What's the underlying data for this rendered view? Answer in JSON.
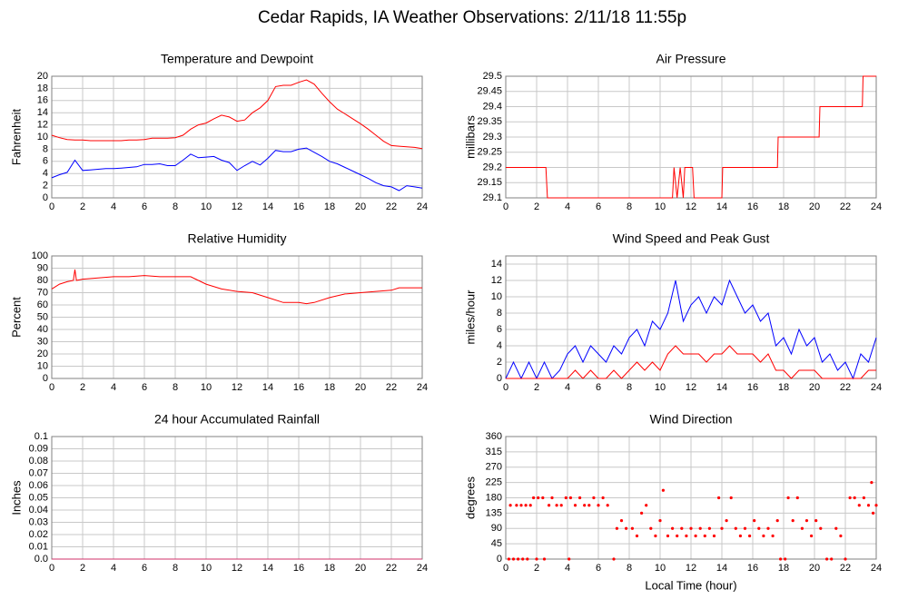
{
  "title": "Cedar Rapids, IA Weather Observations: 2/11/18 11:55p",
  "chart_data": [
    {
      "type": "line",
      "title": "Temperature and Dewpoint",
      "ylabel": "Fahrenheit",
      "xlim": [
        0,
        24
      ],
      "xticks": [
        0,
        2,
        4,
        6,
        8,
        10,
        12,
        14,
        16,
        18,
        20,
        22,
        24
      ],
      "ylim": [
        0,
        20
      ],
      "yticks": [
        0,
        2,
        4,
        6,
        8,
        10,
        12,
        14,
        16,
        18,
        20
      ],
      "grid": true,
      "x": [
        0,
        0.5,
        1,
        1.5,
        2,
        2.5,
        3,
        3.5,
        4,
        4.5,
        5,
        5.5,
        6,
        6.5,
        7,
        7.5,
        8,
        8.5,
        9,
        9.5,
        10,
        10.5,
        11,
        11.5,
        12,
        12.5,
        13,
        13.5,
        14,
        14.5,
        15,
        15.5,
        16,
        16.5,
        17,
        17.5,
        18,
        18.5,
        19,
        19.5,
        20,
        20.5,
        21,
        21.5,
        22,
        22.5,
        23,
        23.5,
        24
      ],
      "series": [
        {
          "color": "#ff0000",
          "values": [
            10.3,
            9.9,
            9.6,
            9.5,
            9.5,
            9.4,
            9.4,
            9.4,
            9.4,
            9.4,
            9.5,
            9.5,
            9.6,
            9.8,
            9.8,
            9.8,
            9.9,
            10.3,
            11.3,
            12,
            12.3,
            13,
            13.6,
            13.3,
            12.6,
            12.8,
            14,
            14.8,
            16,
            18.3,
            18.5,
            18.5,
            19,
            19.4,
            18.7,
            17.2,
            15.8,
            14.6,
            13.8,
            13,
            12.2,
            11.3,
            10.3,
            9.3,
            8.6,
            8.5,
            8.4,
            8.3,
            8.1
          ]
        },
        {
          "color": "#0000ff",
          "values": [
            3.3,
            3.8,
            4.2,
            6.2,
            4.5,
            4.6,
            4.7,
            4.8,
            4.8,
            4.9,
            5,
            5.1,
            5.5,
            5.5,
            5.6,
            5.3,
            5.3,
            6.2,
            7.2,
            6.6,
            6.7,
            6.8,
            6.2,
            5.8,
            4.5,
            5.3,
            6,
            5.4,
            6.5,
            7.8,
            7.6,
            7.6,
            8,
            8.2,
            7.5,
            6.8,
            6,
            5.6,
            5,
            4.4,
            3.8,
            3.2,
            2.5,
            2,
            1.8,
            1.2,
            2,
            1.8,
            1.6
          ]
        }
      ]
    },
    {
      "type": "line",
      "title": "Air Pressure",
      "ylabel": "millibars",
      "xlim": [
        0,
        24
      ],
      "xticks": [
        0,
        2,
        4,
        6,
        8,
        10,
        12,
        14,
        16,
        18,
        20,
        22,
        24
      ],
      "ylim": [
        29.1,
        29.5
      ],
      "yticks": [
        29.1,
        29.15,
        29.2,
        29.25,
        29.3,
        29.35,
        29.4,
        29.45,
        29.5
      ],
      "grid": true,
      "x": [
        0,
        2.6,
        2.7,
        10.8,
        10.9,
        11.1,
        11.3,
        11.5,
        11.6,
        12.1,
        12.2,
        14,
        14.05,
        17.6,
        17.65,
        20.3,
        20.35,
        23.1,
        23.15,
        24
      ],
      "series": [
        {
          "color": "#ff0000",
          "values": [
            29.2,
            29.2,
            29.1,
            29.1,
            29.2,
            29.1,
            29.2,
            29.1,
            29.2,
            29.2,
            29.1,
            29.1,
            29.2,
            29.2,
            29.3,
            29.3,
            29.4,
            29.4,
            29.5,
            29.5
          ]
        }
      ]
    },
    {
      "type": "line",
      "title": "Relative Humidity",
      "ylabel": "Percent",
      "xlim": [
        0,
        24
      ],
      "xticks": [
        0,
        2,
        4,
        6,
        8,
        10,
        12,
        14,
        16,
        18,
        20,
        22,
        24
      ],
      "ylim": [
        0,
        100
      ],
      "yticks": [
        0,
        10,
        20,
        30,
        40,
        50,
        60,
        70,
        80,
        90,
        100
      ],
      "grid": true,
      "x": [
        0,
        0.5,
        1,
        1.4,
        1.5,
        1.6,
        2,
        3,
        4,
        5,
        6,
        7,
        8,
        9,
        9.5,
        10,
        11,
        12,
        13,
        14,
        15,
        16,
        16.5,
        17,
        18,
        19,
        20,
        21,
        22,
        22.5,
        23,
        24
      ],
      "series": [
        {
          "color": "#ff0000",
          "values": [
            73,
            77,
            79,
            80,
            89,
            80,
            81,
            82,
            83,
            83,
            84,
            83,
            83,
            83,
            80,
            77,
            73,
            71,
            70,
            66,
            62,
            62,
            61,
            62,
            66,
            69,
            70,
            71,
            72,
            74,
            74,
            74
          ]
        }
      ]
    },
    {
      "type": "line",
      "title": "Wind Speed and Peak Gust",
      "ylabel": "miles/hour",
      "xlim": [
        0,
        24
      ],
      "xticks": [
        0,
        2,
        4,
        6,
        8,
        10,
        12,
        14,
        16,
        18,
        20,
        22,
        24
      ],
      "ylim": [
        0,
        15
      ],
      "yticks": [
        0,
        2,
        4,
        6,
        8,
        10,
        12,
        14
      ],
      "grid": true,
      "x": [
        0,
        0.5,
        1,
        1.5,
        2,
        2.5,
        3,
        3.5,
        4,
        4.5,
        5,
        5.5,
        6,
        6.5,
        7,
        7.5,
        8,
        8.5,
        9,
        9.5,
        10,
        10.5,
        11,
        11.5,
        12,
        12.5,
        13,
        13.5,
        14,
        14.5,
        15,
        15.5,
        16,
        16.5,
        17,
        17.5,
        18,
        18.5,
        19,
        19.5,
        20,
        20.5,
        21,
        21.5,
        22,
        22.5,
        23,
        23.5,
        24
      ],
      "series": [
        {
          "color": "#0000ff",
          "values": [
            0,
            2,
            0,
            2,
            0,
            2,
            0,
            1,
            3,
            4,
            2,
            4,
            3,
            2,
            4,
            3,
            5,
            6,
            4,
            7,
            6,
            8,
            12,
            7,
            9,
            10,
            8,
            10,
            9,
            12,
            10,
            8,
            9,
            7,
            8,
            4,
            5,
            3,
            6,
            4,
            5,
            2,
            3,
            1,
            2,
            0,
            3,
            2,
            5
          ]
        },
        {
          "color": "#ff0000",
          "values": [
            0,
            0,
            0,
            0,
            0,
            0,
            0,
            0,
            0,
            1,
            0,
            1,
            0,
            0,
            1,
            0,
            1,
            2,
            1,
            2,
            1,
            3,
            4,
            3,
            3,
            3,
            2,
            3,
            3,
            4,
            3,
            3,
            3,
            2,
            3,
            1,
            1,
            0,
            1,
            1,
            1,
            0,
            0,
            0,
            0,
            0,
            0,
            1,
            1
          ]
        }
      ]
    },
    {
      "type": "line",
      "title": "24 hour Accumulated Rainfall",
      "ylabel": "Inches",
      "xlim": [
        0,
        24
      ],
      "xticks": [
        0,
        2,
        4,
        6,
        8,
        10,
        12,
        14,
        16,
        18,
        20,
        22,
        24
      ],
      "ylim": [
        0,
        0.1
      ],
      "yticks": [
        {
          "value": 0,
          "label": "0.0"
        },
        0.01,
        0.02,
        0.03,
        0.04,
        0.05,
        0.06,
        0.07,
        0.08,
        0.09,
        0.1
      ],
      "grid": true,
      "x": [
        0,
        24
      ],
      "series": [
        {
          "color": "#d0306a",
          "values": [
            0,
            0
          ]
        }
      ]
    },
    {
      "type": "scatter",
      "title": "Wind Direction",
      "ylabel": "degrees",
      "xlabel": "Local Time (hour)",
      "xlim": [
        0,
        24
      ],
      "xticks": [
        0,
        2,
        4,
        6,
        8,
        10,
        12,
        14,
        16,
        18,
        20,
        22,
        24
      ],
      "ylim": [
        0,
        360
      ],
      "yticks": [
        0,
        45,
        90,
        135,
        180,
        225,
        270,
        315,
        360
      ],
      "grid": true,
      "x": [
        0.2,
        0.5,
        0.8,
        1.1,
        1.4,
        0.3,
        0.7,
        1.0,
        1.3,
        1.6,
        1.8,
        2.1,
        2.4,
        2.0,
        2.5,
        2.8,
        3.0,
        3.3,
        3.6,
        3.9,
        4.1,
        4.2,
        4.5,
        4.8,
        5.1,
        5.4,
        5.7,
        6.0,
        6.3,
        6.6,
        7.0,
        7.2,
        7.5,
        7.8,
        8.2,
        8.5,
        8.8,
        9.1,
        9.4,
        9.7,
        10.0,
        10.2,
        10.5,
        10.8,
        11.1,
        11.4,
        11.7,
        12.0,
        12.3,
        12.6,
        12.9,
        13.2,
        13.5,
        13.8,
        14.0,
        14.3,
        14.6,
        14.9,
        15.2,
        15.5,
        15.8,
        16.1,
        16.4,
        16.7,
        17.0,
        17.3,
        17.6,
        17.8,
        18.1,
        18.3,
        18.6,
        18.9,
        19.2,
        19.5,
        19.8,
        20.1,
        20.4,
        20.8,
        21.1,
        21.4,
        21.7,
        22.0,
        22.3,
        22.6,
        22.9,
        23.2,
        23.5,
        23.7,
        23.8,
        24.0
      ],
      "series": [
        {
          "color": "#ff0000",
          "values": [
            0,
            0,
            0,
            0,
            0,
            158,
            158,
            158,
            158,
            158,
            180,
            180,
            180,
            0,
            0,
            158,
            180,
            158,
            158,
            180,
            0,
            180,
            158,
            180,
            158,
            158,
            180,
            158,
            180,
            158,
            0,
            90,
            113,
            90,
            90,
            68,
            135,
            158,
            90,
            68,
            113,
            202,
            68,
            90,
            68,
            90,
            68,
            90,
            68,
            90,
            68,
            90,
            68,
            180,
            90,
            113,
            180,
            90,
            68,
            90,
            68,
            113,
            90,
            68,
            90,
            68,
            113,
            0,
            0,
            180,
            113,
            180,
            90,
            113,
            68,
            113,
            90,
            0,
            0,
            90,
            68,
            0,
            180,
            180,
            158,
            180,
            158,
            225,
            135,
            158
          ]
        }
      ]
    }
  ]
}
